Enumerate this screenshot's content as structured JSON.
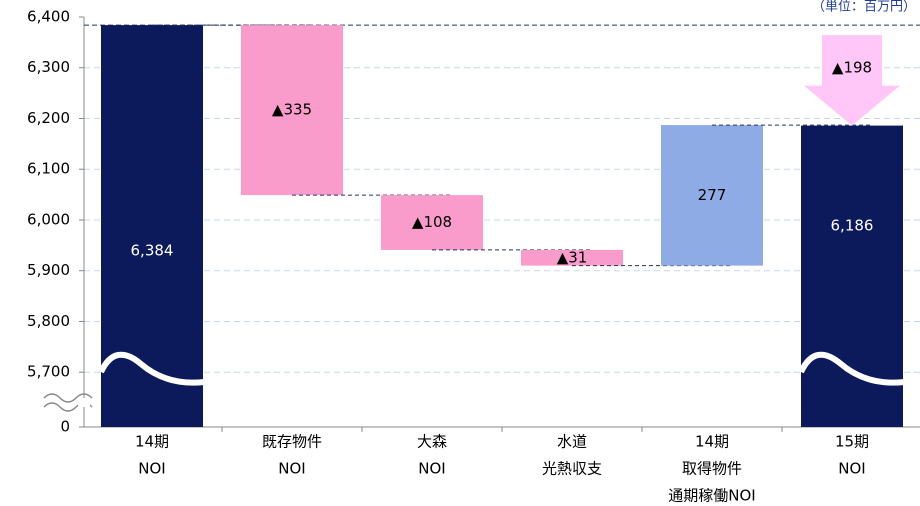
{
  "chart_data": {
    "type": "waterfall",
    "unit_note": "（単位：百万円）",
    "categories": [
      [
        "14期",
        "NOI"
      ],
      [
        "既存物件",
        "NOI"
      ],
      [
        "大森",
        "NOI"
      ],
      [
        "水道",
        "光熱収支"
      ],
      [
        "14期",
        "取得物件",
        "通期稼働NOI"
      ],
      [
        "15期",
        "NOI"
      ]
    ],
    "values": [
      6384,
      -335,
      -108,
      -31,
      277,
      6186
    ],
    "value_labels": [
      "6,384",
      "▲335",
      "▲108",
      "▲31",
      "277",
      "6,186"
    ],
    "is_total": [
      true,
      false,
      false,
      false,
      false,
      true
    ],
    "colors": [
      "#0c1a5c",
      "#fa9ccb",
      "#fa9ccb",
      "#fa9ccb",
      "#8eabe6",
      "#0c1a5c"
    ],
    "annotations": [
      {
        "text": "▲198",
        "color": "#ffc6f7"
      }
    ],
    "ylim": [
      5592,
      6400
    ],
    "yticks": [
      0,
      {
        "value": 5700,
        "label": "5,700"
      },
      {
        "value": 5800,
        "label": "5,800"
      },
      {
        "value": 5900,
        "label": "5,900"
      },
      {
        "value": 6000,
        "label": "6,000"
      },
      {
        "value": 6100,
        "label": "6,100"
      },
      {
        "value": 6200,
        "label": "6,200"
      },
      {
        "value": 6300,
        "label": "6,300"
      },
      {
        "value": 6400,
        "label": "6,400"
      }
    ],
    "grid": true
  }
}
